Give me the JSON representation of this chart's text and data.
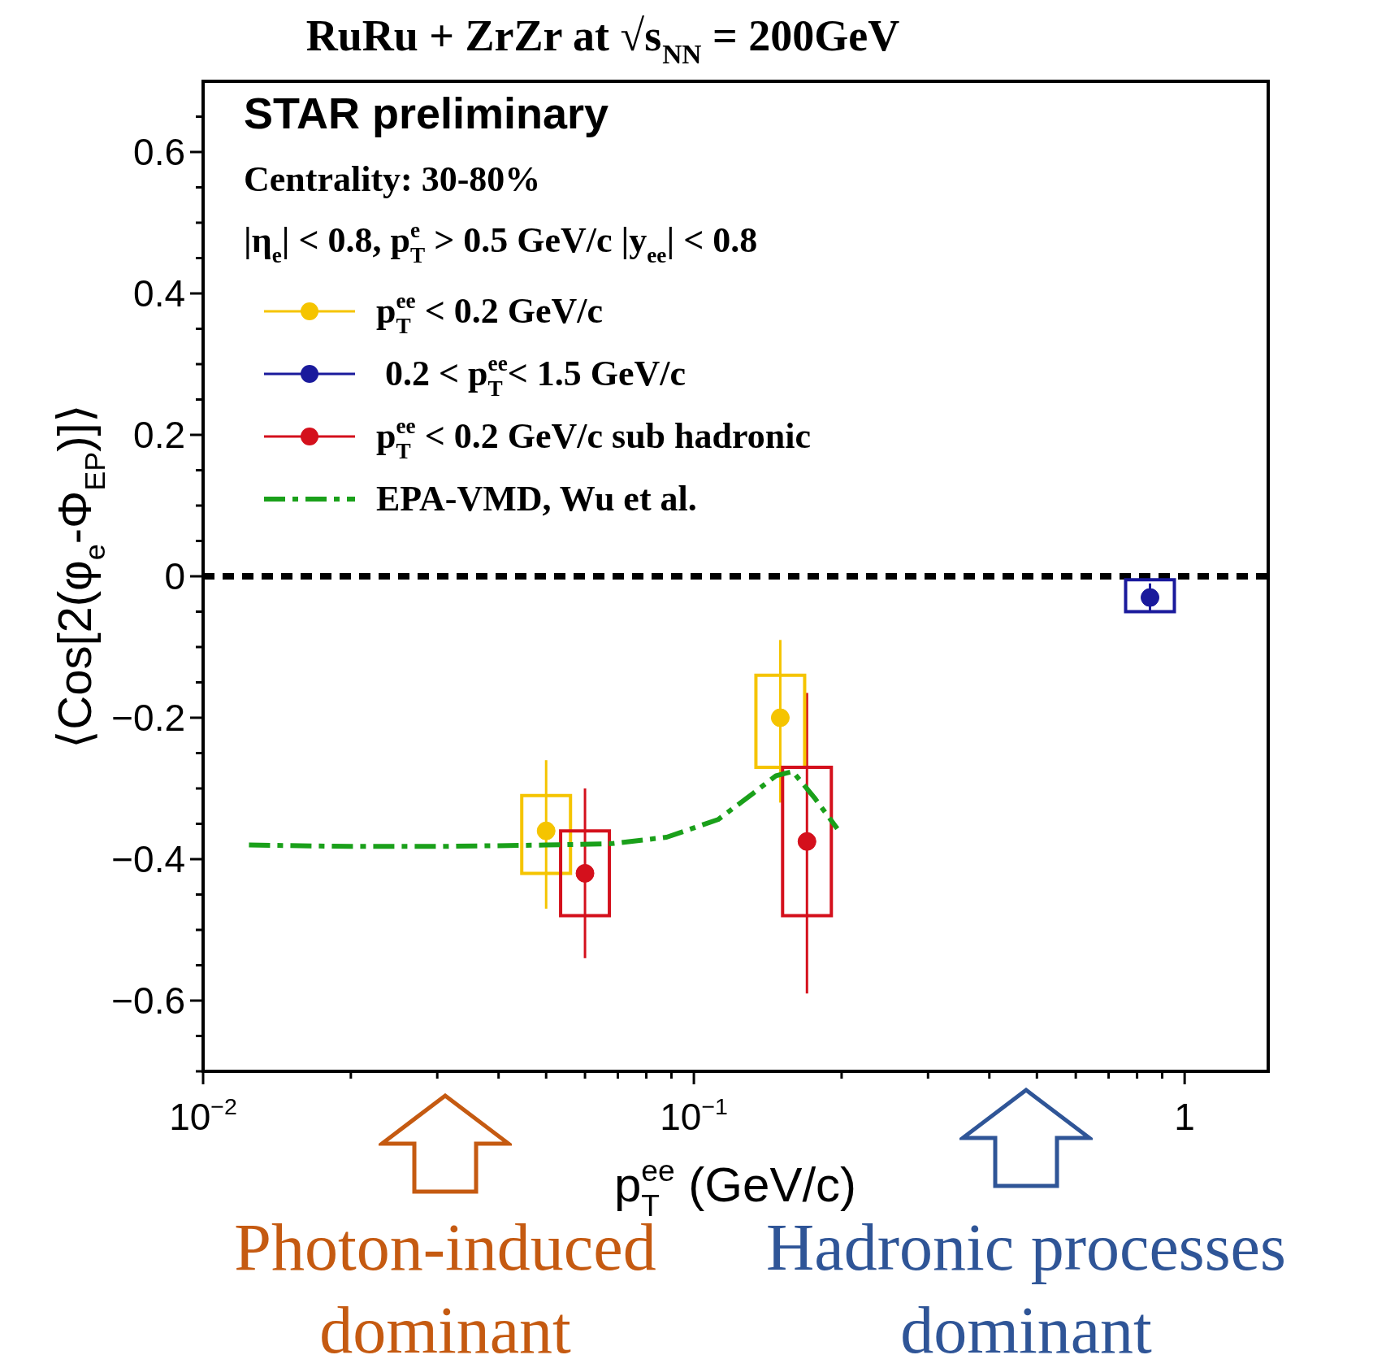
{
  "chart_data": {
    "type": "scatter",
    "title": "RuRu + ZrZr at √s$_{NN}$ = 200GeV",
    "xlabel": "p$_{T}$$^{ee}$ (GeV/c)",
    "ylabel": "⟨Cos[2(φ$_{e}$-Φ$_{EP}$)]⟩",
    "log": "x",
    "xlim": [
      0.01,
      1.48
    ],
    "ylim": [
      -0.7,
      0.7
    ],
    "xticks": [
      {
        "value": 0.01,
        "label": "10$^{−2}$"
      },
      {
        "value": 0.02,
        "label": null
      },
      {
        "value": 0.03,
        "label": null
      },
      {
        "value": 0.04,
        "label": null
      },
      {
        "value": 0.05,
        "label": null
      },
      {
        "value": 0.06,
        "label": null
      },
      {
        "value": 0.07,
        "label": null
      },
      {
        "value": 0.08,
        "label": null
      },
      {
        "value": 0.09,
        "label": null
      },
      {
        "value": 0.1,
        "label": "10$^{−1}$"
      },
      {
        "value": 0.2,
        "label": null
      },
      {
        "value": 0.3,
        "label": null
      },
      {
        "value": 0.4,
        "label": null
      },
      {
        "value": 0.5,
        "label": null
      },
      {
        "value": 0.6,
        "label": null
      },
      {
        "value": 0.7,
        "label": null
      },
      {
        "value": 0.8,
        "label": null
      },
      {
        "value": 0.9,
        "label": null
      },
      {
        "value": 1,
        "label": "1"
      }
    ],
    "yticks": [
      {
        "value": -0.7,
        "label": null
      },
      {
        "value": -0.65,
        "label": null
      },
      {
        "value": -0.6,
        "label": "−0.6"
      },
      {
        "value": -0.55,
        "label": null
      },
      {
        "value": -0.5,
        "label": null
      },
      {
        "value": -0.45,
        "label": null
      },
      {
        "value": -0.4,
        "label": "−0.4"
      },
      {
        "value": -0.35,
        "label": null
      },
      {
        "value": -0.3,
        "label": null
      },
      {
        "value": -0.25,
        "label": null
      },
      {
        "value": -0.2,
        "label": "−0.2"
      },
      {
        "value": -0.15,
        "label": null
      },
      {
        "value": -0.1,
        "label": null
      },
      {
        "value": -0.05,
        "label": null
      },
      0,
      {
        "value": 0.05,
        "label": null
      },
      {
        "value": 0.1,
        "label": null
      },
      {
        "value": 0.15,
        "label": null
      },
      0.2,
      {
        "value": 0.25,
        "label": null
      },
      {
        "value": 0.3,
        "label": null
      },
      {
        "value": 0.35,
        "label": null
      },
      0.4,
      {
        "value": 0.45,
        "label": null
      },
      {
        "value": 0.5,
        "label": null
      },
      {
        "value": 0.55,
        "label": null
      },
      0.6,
      {
        "value": 0.65,
        "label": null
      }
    ],
    "legend": "top left",
    "ref_lines": [
      {
        "axis": "y",
        "value": 0,
        "color": "#000000",
        "line_style": "dotted"
      }
    ],
    "series": [
      {
        "name": "p$_{T}$$^{ee}$ < 0.2 GeV/c",
        "marker": "circle",
        "color": "#f5c400",
        "x": [
          0.05,
          0.15
        ],
        "values": [
          -0.36,
          -0.2
        ],
        "errors": [
          [
            -0.47,
            -0.26
          ],
          [
            -0.32,
            -0.09
          ]
        ]
      },
      {
        "name": " 0.2 < p$_{T}$$^{ee}$< 1.5 GeV/c",
        "marker": "circle",
        "color": "#1a1a9c",
        "x": [
          0.85
        ],
        "values": [
          -0.03
        ],
        "errors": [
          [
            -0.05,
            -0.01
          ]
        ]
      },
      {
        "name": "p$_{T}$$^{ee}$ < 0.2 GeV/c sub hadronic",
        "marker": "circle",
        "color": "#d4101c",
        "x": [
          0.06,
          0.17
        ],
        "values": [
          -0.42,
          -0.375
        ],
        "errors": [
          [
            -0.54,
            -0.3
          ],
          [
            -0.59,
            -0.165
          ]
        ]
      },
      {
        "name": "EPA-VMD, Wu et al.",
        "type": "line",
        "marker": "none",
        "color": "#1aa01a",
        "line_style": "dashed",
        "x": [
          0.0124,
          0.02,
          0.03,
          0.05,
          0.068,
          0.088,
          0.112,
          0.132,
          0.147,
          0.159,
          0.176,
          0.196
        ],
        "values": [
          -0.38,
          -0.382,
          -0.382,
          -0.38,
          -0.378,
          -0.369,
          -0.344,
          -0.307,
          -0.282,
          -0.276,
          -0.313,
          -0.357
        ]
      },
      {
        "type": "bar",
        "color": "#f5c400",
        "x": [
          0.05,
          0.15
        ],
        "base": [
          -0.42,
          -0.27
        ],
        "values": [
          0.11,
          0.13
        ]
      },
      {
        "type": "bar",
        "color": "#1a1a9c",
        "x": [
          0.85
        ],
        "base": [
          -0.05
        ],
        "values": [
          0.045
        ]
      },
      {
        "type": "bar",
        "color": "#d4101c",
        "x": [
          0.06,
          0.17
        ],
        "base": [
          -0.48,
          -0.48
        ],
        "values": [
          0.12,
          0.21
        ]
      }
    ],
    "annotations": [
      "STAR preliminary",
      "Centrality: 30-80%",
      "|η$_{e}$| < 0.8, p$_{T}$$^{e}$ > 0.5 GeV/c |y$_{ee}$| < 0.8",
      "Photon-induced dominant",
      "Hadronic processes dominant"
    ]
  }
}
